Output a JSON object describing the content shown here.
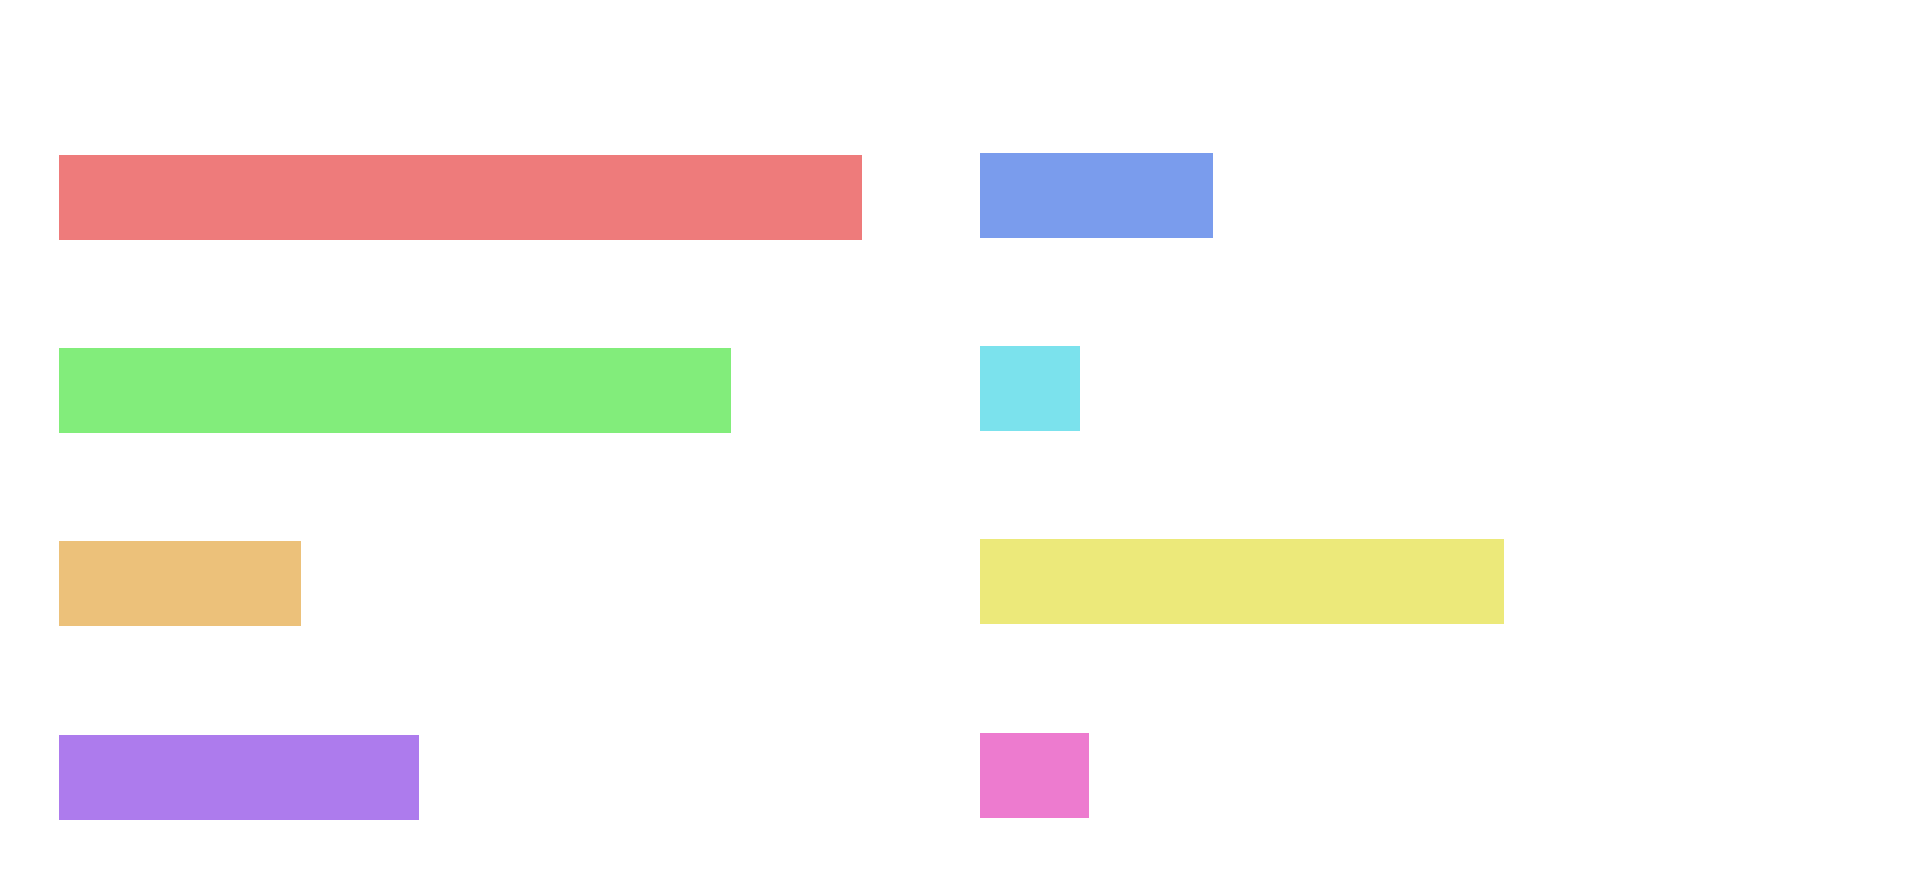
{
  "bars": [
    {
      "name": "red",
      "color": "#EE7B7B",
      "level": 0.803
    },
    {
      "name": "green",
      "color": "#82ED7B",
      "level": 0.672
    },
    {
      "name": "orange",
      "color": "#ECC17A",
      "level": 0.242
    },
    {
      "name": "purple",
      "color": "#AD7BED",
      "level": 0.36
    },
    {
      "name": "blue",
      "color": "#7A9CED",
      "level": 0.233
    },
    {
      "name": "cyan",
      "color": "#7BE2ED",
      "level": 0.1
    },
    {
      "name": "yellow",
      "color": "#ECE97A",
      "level": 0.524
    },
    {
      "name": "pink",
      "color": "#ED7BCF",
      "level": 0.109
    }
  ]
}
